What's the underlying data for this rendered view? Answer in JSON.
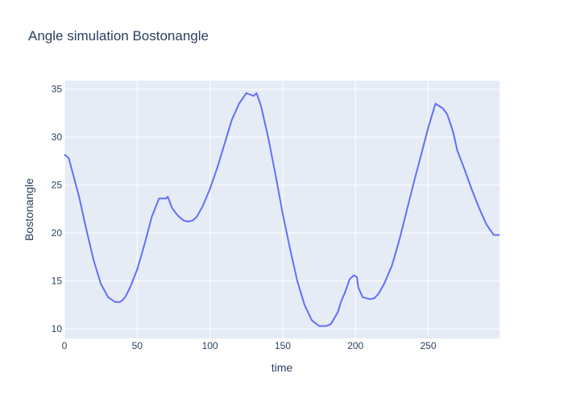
{
  "chart_data": {
    "type": "line",
    "title": "Angle simulation Bostonangle",
    "xlabel": "time",
    "ylabel": "Bostonangle",
    "xlim": [
      0,
      299
    ],
    "ylim": [
      9.0,
      35.9
    ],
    "grid": true,
    "legend": "none",
    "colors": {
      "plot_bg": "#e5ecf6",
      "grid": "#ffffff",
      "line": "#636efa",
      "text": "#2a3f5f"
    },
    "x_ticks": [
      0,
      50,
      100,
      150,
      200,
      250
    ],
    "y_ticks": [
      10,
      15,
      20,
      25,
      30,
      35
    ],
    "series": [
      {
        "x": [
          0,
          3,
          6,
          10,
          15,
          20,
          25,
          30,
          35,
          38,
          40,
          42,
          45,
          50,
          55,
          60,
          65,
          70,
          71,
          74,
          78,
          82,
          85,
          88,
          91,
          95,
          100,
          105,
          110,
          115,
          120,
          125,
          130,
          132,
          135,
          140,
          145,
          150,
          155,
          160,
          165,
          170,
          175,
          180,
          183,
          185,
          188,
          190,
          193,
          196,
          199,
          201,
          202,
          205,
          210,
          213,
          216,
          220,
          225,
          230,
          235,
          240,
          245,
          250,
          255,
          260,
          263,
          267,
          270,
          275,
          280,
          285,
          290,
          295,
          299
        ],
        "y": [
          28.2,
          27.8,
          26.1,
          23.8,
          20.4,
          17.2,
          14.7,
          13.3,
          12.8,
          12.8,
          13.0,
          13.4,
          14.3,
          16.2,
          18.8,
          21.7,
          23.6,
          23.6,
          23.8,
          22.6,
          21.8,
          21.3,
          21.2,
          21.3,
          21.7,
          22.8,
          24.6,
          26.8,
          29.3,
          31.8,
          33.5,
          34.6,
          34.3,
          34.6,
          33.3,
          30.0,
          26.1,
          22.0,
          18.4,
          15.0,
          12.5,
          10.9,
          10.3,
          10.3,
          10.5,
          11.0,
          11.8,
          12.8,
          13.9,
          15.2,
          15.6,
          15.4,
          14.3,
          13.3,
          13.1,
          13.2,
          13.7,
          14.8,
          16.6,
          19.2,
          22.2,
          25.2,
          28.1,
          31.0,
          33.5,
          33.0,
          32.4,
          30.6,
          28.6,
          26.6,
          24.5,
          22.6,
          20.9,
          19.8,
          19.8
        ]
      }
    ]
  }
}
